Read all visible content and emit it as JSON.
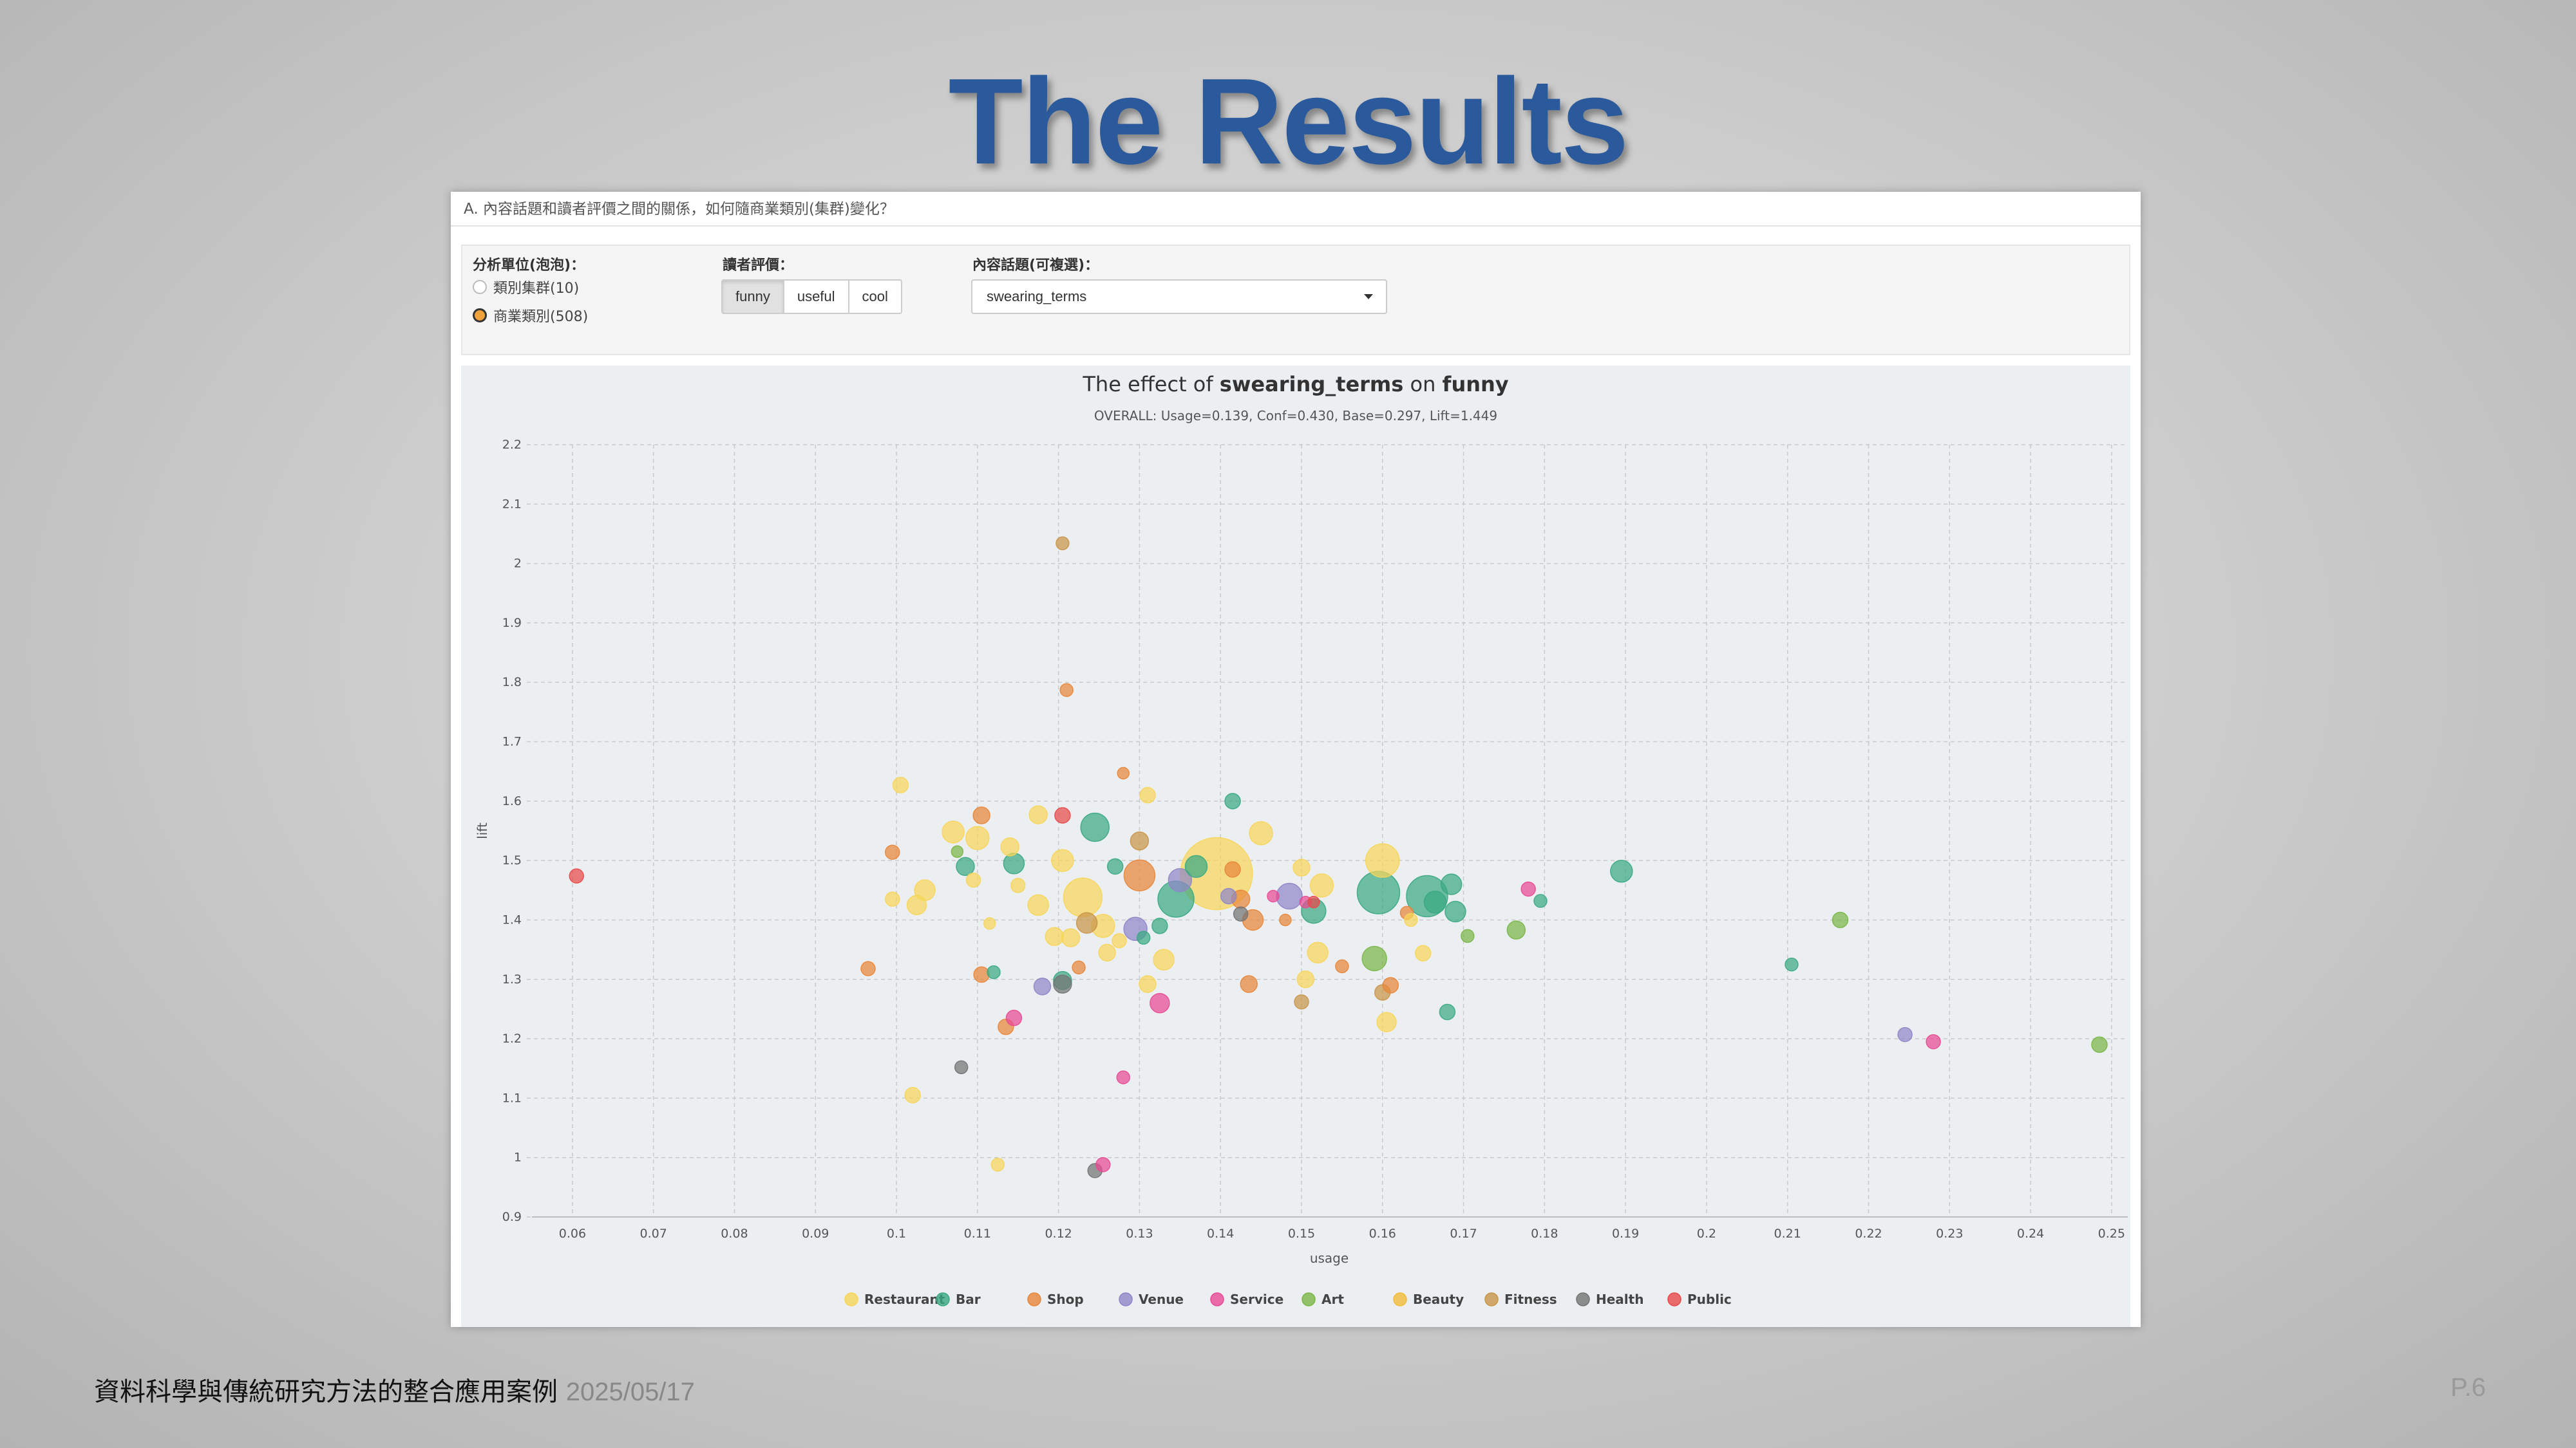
{
  "slide": {
    "title": "The Results",
    "footer_text": "資料科學與傳統研究方法的整合應用案例",
    "footer_date": "2025/05/17",
    "page_number": "P.6"
  },
  "panel": {
    "header": "A. 內容話題和讀者評價之間的關係，如何隨商業類別(集群)變化？",
    "unit_label": "分析單位(泡泡)：",
    "unit_options": [
      {
        "label": "類別集群(10)",
        "checked": false
      },
      {
        "label": "商業類別(508)",
        "checked": true
      }
    ],
    "rating_label": "讀者評價：",
    "rating_buttons": [
      {
        "label": "funny",
        "active": true
      },
      {
        "label": "useful",
        "active": false
      },
      {
        "label": "cool",
        "active": false
      }
    ],
    "topic_label": "內容話題(可複選)：",
    "topic_selected": "swearing_terms"
  },
  "chart_data": {
    "type": "scatter",
    "title_prefix": "The effect of ",
    "title_topic": "swearing_terms",
    "title_mid": " on ",
    "title_rating": "funny",
    "subtitle": "OVERALL: Usage=0.139, Conf=0.430, Base=0.297, Lift=1.449",
    "xlabel": "usage",
    "ylabel": "lift",
    "xlim": [
      0.055,
      0.252
    ],
    "ylim": [
      0.9,
      2.2
    ],
    "xticks": [
      0.06,
      0.07,
      0.08,
      0.09,
      0.1,
      0.11,
      0.12,
      0.13,
      0.14,
      0.15,
      0.16,
      0.17,
      0.18,
      0.19,
      0.2,
      0.21,
      0.22,
      0.23,
      0.24,
      0.25
    ],
    "xtick_labels": [
      "0.06",
      "0.07",
      "0.08",
      "0.09",
      "0.1",
      "0.11",
      "0.12",
      "0.13",
      "0.14",
      "0.15",
      "0.16",
      "0.17",
      "0.18",
      "0.19",
      "0.2",
      "0.21",
      "0.22",
      "0.23",
      "0.24",
      "0.25"
    ],
    "yticks": [
      0.9,
      1,
      1.1,
      1.2,
      1.3,
      1.4,
      1.5,
      1.6,
      1.7,
      1.8,
      1.9,
      2,
      2.1,
      2.2
    ],
    "ytick_labels": [
      "0.9",
      "1",
      "1.1",
      "1.2",
      "1.3",
      "1.4",
      "1.5",
      "1.6",
      "1.7",
      "1.8",
      "1.9",
      "2",
      "2.1",
      "2.2"
    ],
    "grid": true,
    "legend_position": "bottom",
    "categories": [
      {
        "name": "Restaurant",
        "color": "#f7d55a"
      },
      {
        "name": "Bar",
        "color": "#3aa982"
      },
      {
        "name": "Shop",
        "color": "#e8863a"
      },
      {
        "name": "Venue",
        "color": "#8e86c8"
      },
      {
        "name": "Service",
        "color": "#e84a95"
      },
      {
        "name": "Art",
        "color": "#7ab648"
      },
      {
        "name": "Beauty",
        "color": "#f2bb3a"
      },
      {
        "name": "Fitness",
        "color": "#c9954a"
      },
      {
        "name": "Health",
        "color": "#737373"
      },
      {
        "name": "Public",
        "color": "#e8494a"
      }
    ],
    "points": [
      {
        "x": 0.0605,
        "y": 1.474,
        "cat": "Public",
        "r": 11
      },
      {
        "x": 0.0965,
        "y": 1.318,
        "cat": "Shop",
        "r": 11
      },
      {
        "x": 0.0995,
        "y": 1.514,
        "cat": "Shop",
        "r": 11
      },
      {
        "x": 0.0995,
        "y": 1.435,
        "cat": "Restaurant",
        "r": 11
      },
      {
        "x": 0.1005,
        "y": 1.627,
        "cat": "Restaurant",
        "r": 12
      },
      {
        "x": 0.102,
        "y": 1.105,
        "cat": "Restaurant",
        "r": 12
      },
      {
        "x": 0.1025,
        "y": 1.425,
        "cat": "Restaurant",
        "r": 15
      },
      {
        "x": 0.1035,
        "y": 1.45,
        "cat": "Restaurant",
        "r": 16
      },
      {
        "x": 0.1075,
        "y": 1.515,
        "cat": "Art",
        "r": 9
      },
      {
        "x": 0.107,
        "y": 1.548,
        "cat": "Restaurant",
        "r": 17
      },
      {
        "x": 0.1085,
        "y": 1.49,
        "cat": "Bar",
        "r": 14
      },
      {
        "x": 0.108,
        "y": 1.152,
        "cat": "Health",
        "r": 10
      },
      {
        "x": 0.1095,
        "y": 1.467,
        "cat": "Restaurant",
        "r": 11
      },
      {
        "x": 0.11,
        "y": 1.538,
        "cat": "Restaurant",
        "r": 18
      },
      {
        "x": 0.1105,
        "y": 1.576,
        "cat": "Shop",
        "r": 13
      },
      {
        "x": 0.1105,
        "y": 1.308,
        "cat": "Shop",
        "r": 12
      },
      {
        "x": 0.1115,
        "y": 1.394,
        "cat": "Restaurant",
        "r": 9
      },
      {
        "x": 0.112,
        "y": 1.312,
        "cat": "Bar",
        "r": 10
      },
      {
        "x": 0.1125,
        "y": 0.988,
        "cat": "Restaurant",
        "r": 10
      },
      {
        "x": 0.1135,
        "y": 1.22,
        "cat": "Shop",
        "r": 12
      },
      {
        "x": 0.114,
        "y": 1.523,
        "cat": "Restaurant",
        "r": 14
      },
      {
        "x": 0.1145,
        "y": 1.235,
        "cat": "Service",
        "r": 12
      },
      {
        "x": 0.1145,
        "y": 1.495,
        "cat": "Bar",
        "r": 16
      },
      {
        "x": 0.115,
        "y": 1.458,
        "cat": "Restaurant",
        "r": 11
      },
      {
        "x": 0.1175,
        "y": 1.577,
        "cat": "Restaurant",
        "r": 14
      },
      {
        "x": 0.1175,
        "y": 1.425,
        "cat": "Restaurant",
        "r": 16
      },
      {
        "x": 0.118,
        "y": 1.288,
        "cat": "Venue",
        "r": 13
      },
      {
        "x": 0.1195,
        "y": 1.372,
        "cat": "Restaurant",
        "r": 14
      },
      {
        "x": 0.1205,
        "y": 1.576,
        "cat": "Public",
        "r": 12
      },
      {
        "x": 0.1205,
        "y": 1.5,
        "cat": "Restaurant",
        "r": 17
      },
      {
        "x": 0.1205,
        "y": 1.298,
        "cat": "Bar",
        "r": 14
      },
      {
        "x": 0.1205,
        "y": 1.292,
        "cat": "Health",
        "r": 14
      },
      {
        "x": 0.1205,
        "y": 2.034,
        "cat": "Fitness",
        "r": 10
      },
      {
        "x": 0.121,
        "y": 1.787,
        "cat": "Shop",
        "r": 10
      },
      {
        "x": 0.1215,
        "y": 1.37,
        "cat": "Restaurant",
        "r": 14
      },
      {
        "x": 0.1225,
        "y": 1.32,
        "cat": "Shop",
        "r": 10
      },
      {
        "x": 0.123,
        "y": 1.438,
        "cat": "Restaurant",
        "r": 30
      },
      {
        "x": 0.1235,
        "y": 1.395,
        "cat": "Fitness",
        "r": 16
      },
      {
        "x": 0.1245,
        "y": 0.978,
        "cat": "Health",
        "r": 11
      },
      {
        "x": 0.1245,
        "y": 1.556,
        "cat": "Bar",
        "r": 22
      },
      {
        "x": 0.1255,
        "y": 0.988,
        "cat": "Service",
        "r": 11
      },
      {
        "x": 0.1255,
        "y": 1.39,
        "cat": "Restaurant",
        "r": 18
      },
      {
        "x": 0.126,
        "y": 1.345,
        "cat": "Restaurant",
        "r": 13
      },
      {
        "x": 0.127,
        "y": 1.49,
        "cat": "Bar",
        "r": 12
      },
      {
        "x": 0.1275,
        "y": 1.365,
        "cat": "Restaurant",
        "r": 11
      },
      {
        "x": 0.128,
        "y": 1.647,
        "cat": "Shop",
        "r": 9
      },
      {
        "x": 0.128,
        "y": 1.135,
        "cat": "Service",
        "r": 10
      },
      {
        "x": 0.1295,
        "y": 1.385,
        "cat": "Venue",
        "r": 18
      },
      {
        "x": 0.13,
        "y": 1.475,
        "cat": "Shop",
        "r": 24
      },
      {
        "x": 0.13,
        "y": 1.533,
        "cat": "Fitness",
        "r": 14
      },
      {
        "x": 0.1305,
        "y": 1.37,
        "cat": "Bar",
        "r": 10
      },
      {
        "x": 0.131,
        "y": 1.292,
        "cat": "Restaurant",
        "r": 13
      },
      {
        "x": 0.131,
        "y": 1.61,
        "cat": "Restaurant",
        "r": 12
      },
      {
        "x": 0.1325,
        "y": 1.39,
        "cat": "Bar",
        "r": 12
      },
      {
        "x": 0.1325,
        "y": 1.26,
        "cat": "Service",
        "r": 15
      },
      {
        "x": 0.133,
        "y": 1.333,
        "cat": "Restaurant",
        "r": 16
      },
      {
        "x": 0.1345,
        "y": 1.435,
        "cat": "Bar",
        "r": 28
      },
      {
        "x": 0.135,
        "y": 1.467,
        "cat": "Venue",
        "r": 18
      },
      {
        "x": 0.137,
        "y": 1.49,
        "cat": "Bar",
        "r": 17
      },
      {
        "x": 0.1395,
        "y": 1.478,
        "cat": "Restaurant",
        "r": 56
      },
      {
        "x": 0.141,
        "y": 1.44,
        "cat": "Venue",
        "r": 12
      },
      {
        "x": 0.1415,
        "y": 1.485,
        "cat": "Shop",
        "r": 12
      },
      {
        "x": 0.1415,
        "y": 1.6,
        "cat": "Bar",
        "r": 12
      },
      {
        "x": 0.1425,
        "y": 1.41,
        "cat": "Health",
        "r": 11
      },
      {
        "x": 0.1425,
        "y": 1.435,
        "cat": "Shop",
        "r": 14
      },
      {
        "x": 0.1435,
        "y": 1.292,
        "cat": "Shop",
        "r": 13
      },
      {
        "x": 0.144,
        "y": 1.4,
        "cat": "Shop",
        "r": 16
      },
      {
        "x": 0.145,
        "y": 1.546,
        "cat": "Restaurant",
        "r": 18
      },
      {
        "x": 0.1465,
        "y": 1.44,
        "cat": "Service",
        "r": 9
      },
      {
        "x": 0.148,
        "y": 1.4,
        "cat": "Shop",
        "r": 9
      },
      {
        "x": 0.1485,
        "y": 1.44,
        "cat": "Venue",
        "r": 20
      },
      {
        "x": 0.15,
        "y": 1.488,
        "cat": "Restaurant",
        "r": 13
      },
      {
        "x": 0.15,
        "y": 1.262,
        "cat": "Fitness",
        "r": 11
      },
      {
        "x": 0.1505,
        "y": 1.3,
        "cat": "Restaurant",
        "r": 13
      },
      {
        "x": 0.1505,
        "y": 1.43,
        "cat": "Service",
        "r": 9
      },
      {
        "x": 0.1515,
        "y": 1.415,
        "cat": "Bar",
        "r": 19
      },
      {
        "x": 0.1515,
        "y": 1.43,
        "cat": "Public",
        "r": 9
      },
      {
        "x": 0.1525,
        "y": 1.458,
        "cat": "Restaurant",
        "r": 18
      },
      {
        "x": 0.152,
        "y": 1.345,
        "cat": "Restaurant",
        "r": 16
      },
      {
        "x": 0.155,
        "y": 1.322,
        "cat": "Shop",
        "r": 10
      },
      {
        "x": 0.159,
        "y": 1.335,
        "cat": "Art",
        "r": 19
      },
      {
        "x": 0.1595,
        "y": 1.446,
        "cat": "Bar",
        "r": 33
      },
      {
        "x": 0.16,
        "y": 1.5,
        "cat": "Restaurant",
        "r": 26
      },
      {
        "x": 0.16,
        "y": 1.278,
        "cat": "Fitness",
        "r": 12
      },
      {
        "x": 0.1605,
        "y": 1.228,
        "cat": "Restaurant",
        "r": 15
      },
      {
        "x": 0.161,
        "y": 1.29,
        "cat": "Shop",
        "r": 12
      },
      {
        "x": 0.163,
        "y": 1.412,
        "cat": "Shop",
        "r": 10
      },
      {
        "x": 0.1635,
        "y": 1.4,
        "cat": "Restaurant",
        "r": 10
      },
      {
        "x": 0.165,
        "y": 1.344,
        "cat": "Restaurant",
        "r": 12
      },
      {
        "x": 0.1655,
        "y": 1.44,
        "cat": "Bar",
        "r": 32
      },
      {
        "x": 0.1665,
        "y": 1.43,
        "cat": "Bar",
        "r": 17
      },
      {
        "x": 0.168,
        "y": 1.245,
        "cat": "Bar",
        "r": 12
      },
      {
        "x": 0.1685,
        "y": 1.46,
        "cat": "Bar",
        "r": 16
      },
      {
        "x": 0.169,
        "y": 1.414,
        "cat": "Bar",
        "r": 16
      },
      {
        "x": 0.1705,
        "y": 1.373,
        "cat": "Art",
        "r": 10
      },
      {
        "x": 0.1765,
        "y": 1.383,
        "cat": "Art",
        "r": 14
      },
      {
        "x": 0.178,
        "y": 1.452,
        "cat": "Service",
        "r": 11
      },
      {
        "x": 0.1795,
        "y": 1.432,
        "cat": "Bar",
        "r": 10
      },
      {
        "x": 0.1895,
        "y": 1.482,
        "cat": "Bar",
        "r": 17
      },
      {
        "x": 0.2105,
        "y": 1.325,
        "cat": "Bar",
        "r": 10
      },
      {
        "x": 0.2165,
        "y": 1.4,
        "cat": "Art",
        "r": 12
      },
      {
        "x": 0.2245,
        "y": 1.207,
        "cat": "Venue",
        "r": 11
      },
      {
        "x": 0.228,
        "y": 1.195,
        "cat": "Service",
        "r": 11
      },
      {
        "x": 0.2485,
        "y": 1.19,
        "cat": "Art",
        "r": 12
      }
    ]
  }
}
